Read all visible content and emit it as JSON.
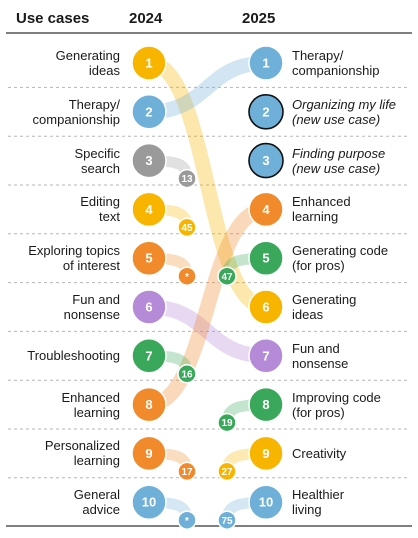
{
  "headers": {
    "use_cases": "Use cases",
    "year_a": "2024",
    "year_b": "2025"
  },
  "colors": {
    "yellow": "#f7b500",
    "blue": "#6fb0d8",
    "gray": "#9a9a9a",
    "orange": "#f08a2a",
    "purple": "#b58ad6",
    "green": "#3aa85a",
    "divider": "#b5b5b5",
    "outline": "#111111"
  },
  "chart_data": {
    "type": "slope",
    "years": [
      "2024",
      "2025"
    ],
    "rank_2024": [
      {
        "rank": 1,
        "label": "Generating\nideas",
        "color": "yellow"
      },
      {
        "rank": 2,
        "label": "Therapy/\ncompanionship",
        "color": "blue"
      },
      {
        "rank": 3,
        "label": "Specific\nsearch",
        "color": "gray"
      },
      {
        "rank": 4,
        "label": "Editing\ntext",
        "color": "yellow"
      },
      {
        "rank": 5,
        "label": "Exploring topics\nof interest",
        "color": "orange"
      },
      {
        "rank": 6,
        "label": "Fun and\nnonsense",
        "color": "purple"
      },
      {
        "rank": 7,
        "label": "Troubleshooting",
        "color": "green"
      },
      {
        "rank": 8,
        "label": "Enhanced\nlearning",
        "color": "orange"
      },
      {
        "rank": 9,
        "label": "Personalized\nlearning",
        "color": "orange"
      },
      {
        "rank": 10,
        "label": "General\nadvice",
        "color": "blue"
      }
    ],
    "rank_2025": [
      {
        "rank": 1,
        "label": "Therapy/\ncompanionship",
        "color": "blue",
        "new": false
      },
      {
        "rank": 2,
        "label": "Organizing my life\n(new use case)",
        "color": "blue",
        "new": true
      },
      {
        "rank": 3,
        "label": "Finding purpose\n(new use case)",
        "color": "blue",
        "new": true
      },
      {
        "rank": 4,
        "label": "Enhanced\nlearning",
        "color": "orange",
        "new": false
      },
      {
        "rank": 5,
        "label": "Generating code\n(for pros)",
        "color": "green",
        "new": false
      },
      {
        "rank": 6,
        "label": "Generating\nideas",
        "color": "yellow",
        "new": false
      },
      {
        "rank": 7,
        "label": "Fun and\nnonsense",
        "color": "purple",
        "new": false
      },
      {
        "rank": 8,
        "label": "Improving code\n(for pros)",
        "color": "green",
        "new": false
      },
      {
        "rank": 9,
        "label": "Creativity",
        "color": "yellow",
        "new": false
      },
      {
        "rank": 10,
        "label": "Healthier\nliving",
        "color": "blue",
        "new": false
      }
    ],
    "connections": [
      {
        "from": 1,
        "to": 6,
        "color": "yellow"
      },
      {
        "from": 2,
        "to": 1,
        "color": "blue"
      },
      {
        "from": 6,
        "to": 7,
        "color": "purple"
      },
      {
        "from": 8,
        "to": 4,
        "color": "orange"
      }
    ],
    "drop_2024": [
      {
        "from": 3,
        "value": "13",
        "color": "gray"
      },
      {
        "from": 4,
        "value": "45",
        "color": "yellow"
      },
      {
        "from": 5,
        "value": "*",
        "color": "orange"
      },
      {
        "from": 7,
        "value": "16",
        "color": "green"
      },
      {
        "from": 9,
        "value": "17",
        "color": "orange"
      },
      {
        "from": 10,
        "value": "*",
        "color": "blue"
      }
    ],
    "prior_2025": [
      {
        "to": 5,
        "value": "47",
        "color": "green"
      },
      {
        "to": 8,
        "value": "19",
        "color": "green"
      },
      {
        "to": 9,
        "value": "27",
        "color": "yellow"
      },
      {
        "to": 10,
        "value": "75",
        "color": "blue"
      }
    ]
  }
}
